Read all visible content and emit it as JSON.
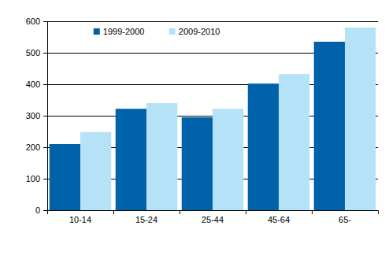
{
  "chart_data": {
    "type": "bar",
    "categories": [
      "10-14",
      "15-24",
      "25-44",
      "45-64",
      "65-"
    ],
    "series": [
      {
        "name": "1999-2000",
        "color": "#0062a8",
        "values": [
          210,
          322,
          295,
          402,
          535
        ]
      },
      {
        "name": "2009-2010",
        "color": "#b6e2f8",
        "values": [
          248,
          340,
          322,
          432,
          580
        ]
      }
    ],
    "ylim": [
      0,
      600
    ],
    "yticks": [
      0,
      100,
      200,
      300,
      400,
      500,
      600
    ],
    "grid": true,
    "legend": "top"
  }
}
